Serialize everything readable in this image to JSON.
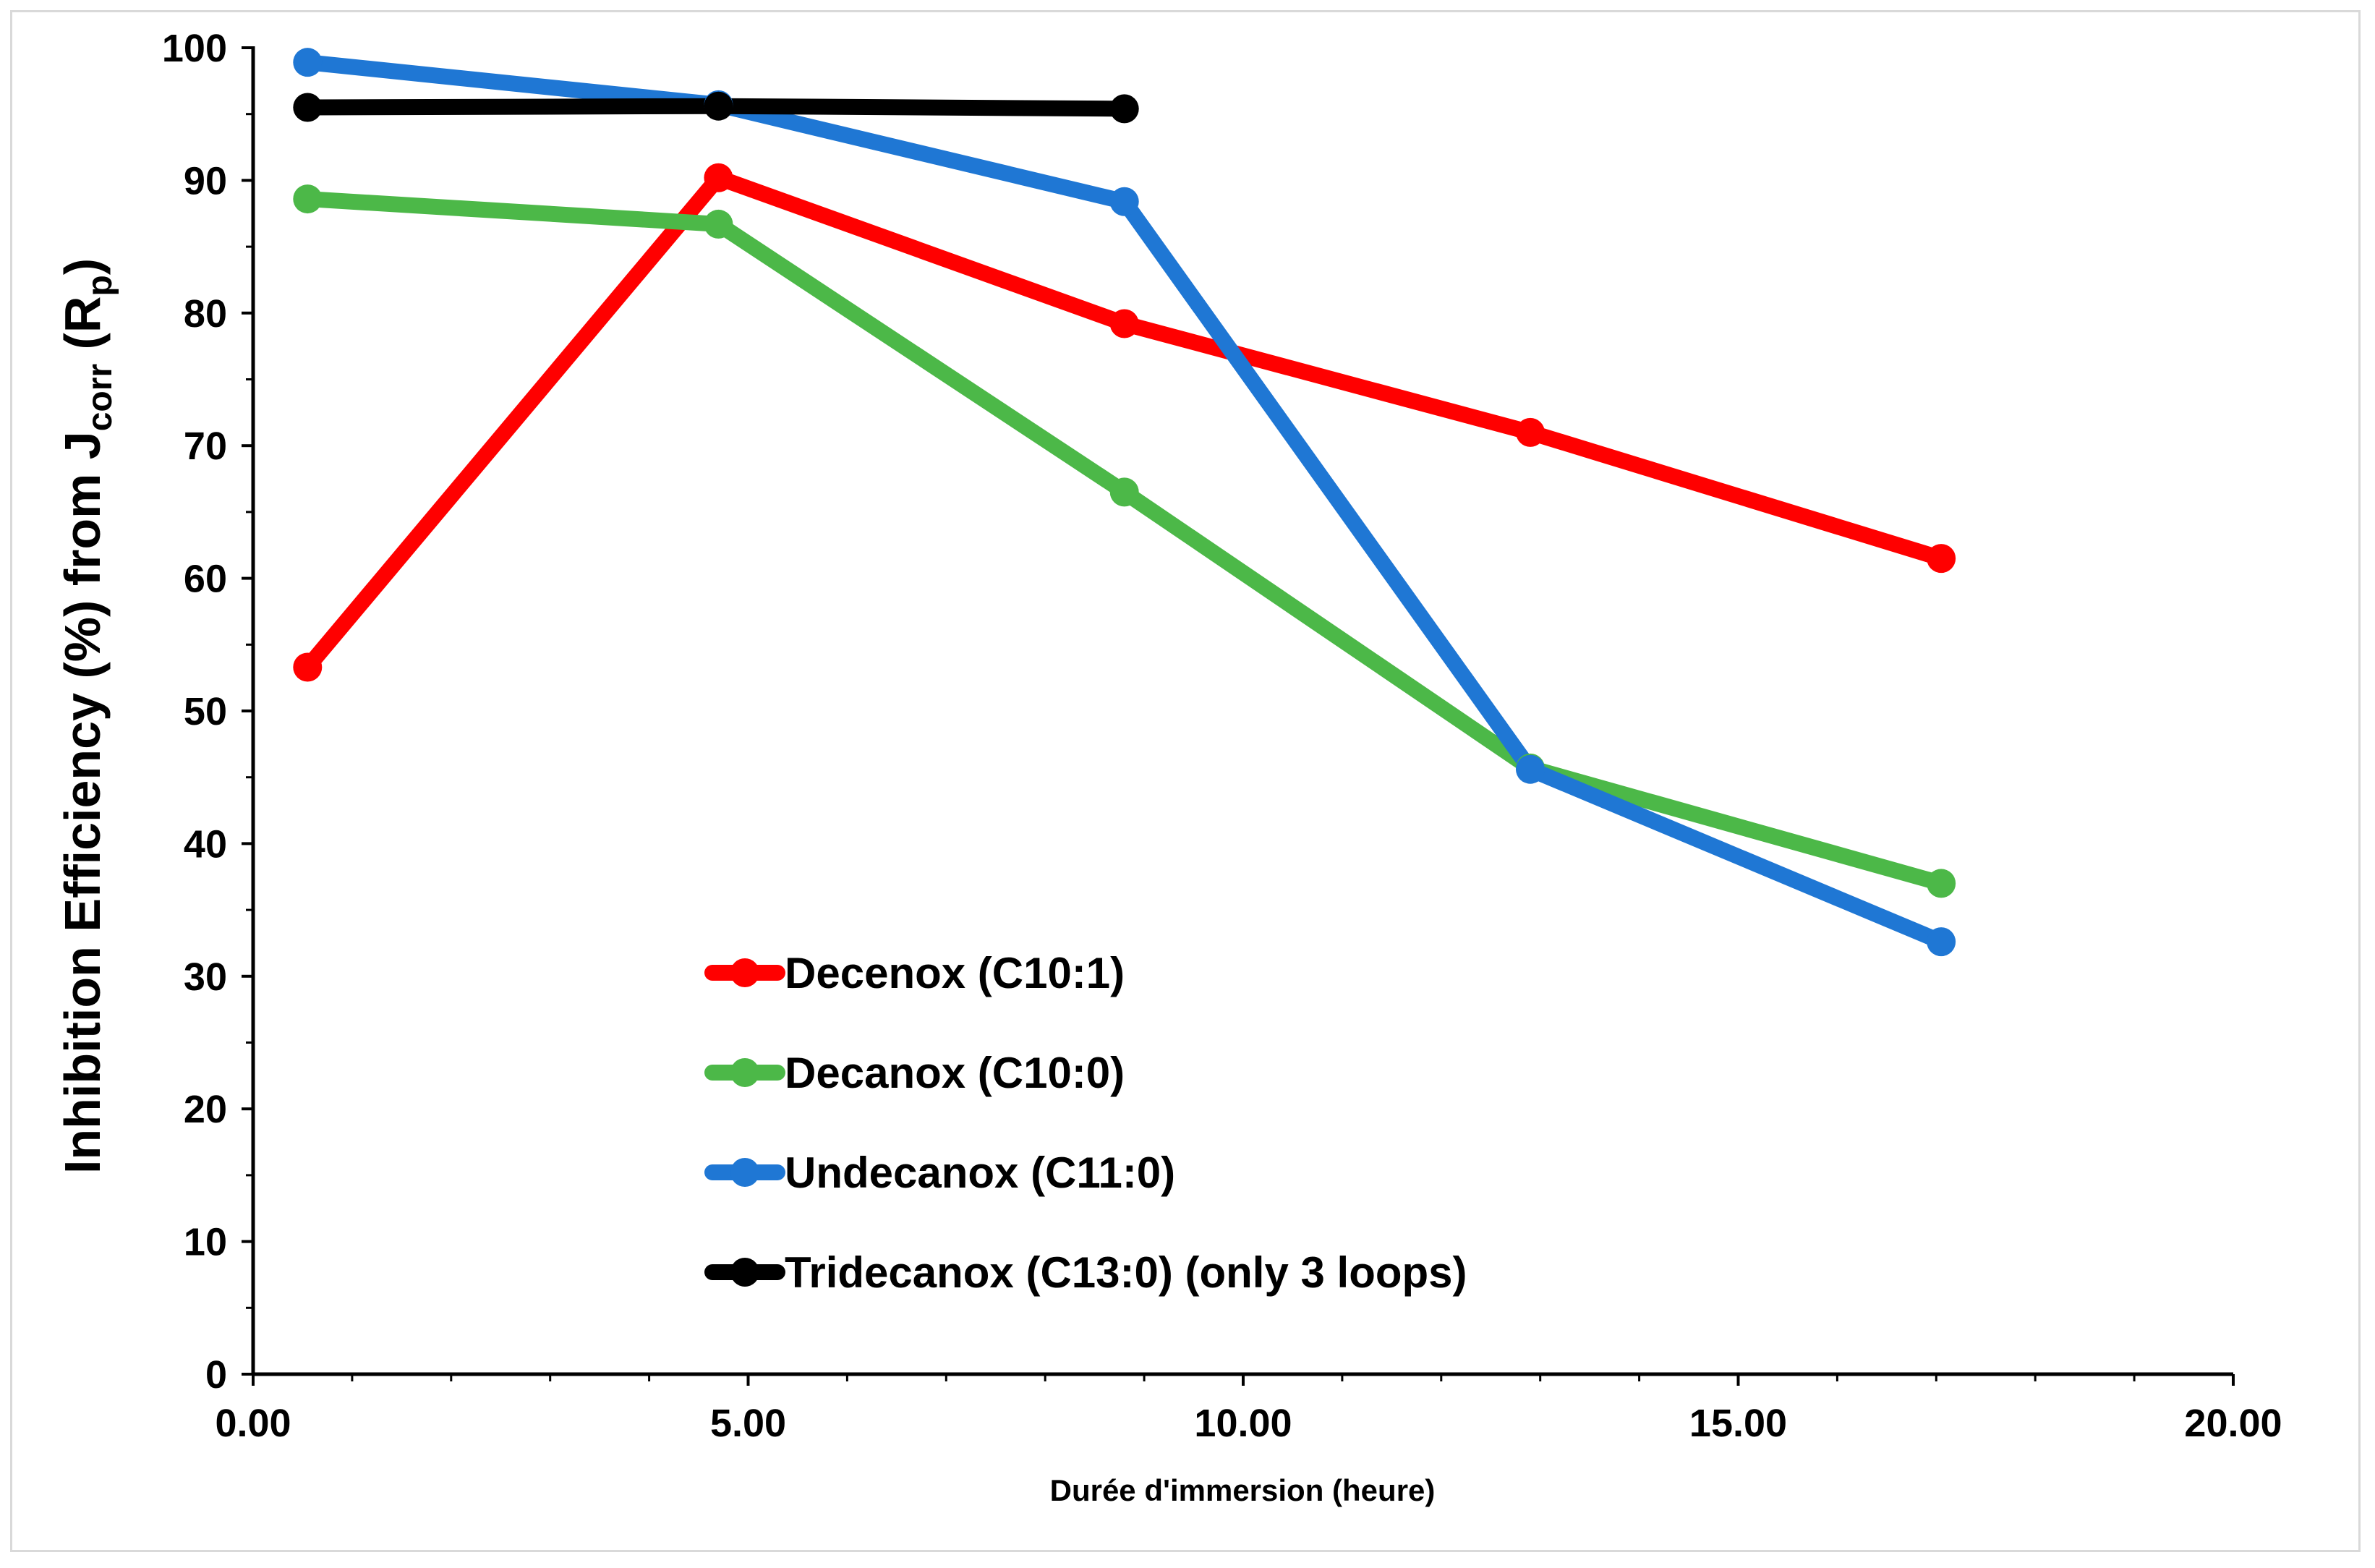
{
  "chart_data": {
    "type": "line",
    "title": "",
    "xlabel": "Durée d'immersion (heure)",
    "ylabel": {
      "main": "Inhibition Efficiency (%) from J",
      "sub1": "corr",
      "mid": " (R",
      "sub2": "p",
      "end": ")"
    },
    "xlim": [
      0,
      20
    ],
    "ylim": [
      0,
      100
    ],
    "xticks": [
      "0.00",
      "5.00",
      "10.00",
      "15.00",
      "20.00"
    ],
    "yticks": [
      "0",
      "10",
      "20",
      "30",
      "40",
      "50",
      "60",
      "70",
      "80",
      "90",
      "100"
    ],
    "grid": false,
    "legend_position": "lower-center",
    "series": [
      {
        "name": "Decenox (C10:1)",
        "color": "#ff0000",
        "x": [
          0.55,
          4.7,
          8.8,
          12.9,
          17.05
        ],
        "y": [
          53.3,
          90.2,
          79.2,
          71.0,
          61.5
        ]
      },
      {
        "name": "Decanox (C10:0)",
        "color": "#4cb848",
        "x": [
          0.55,
          4.7,
          8.8,
          12.9,
          17.05
        ],
        "y": [
          88.6,
          86.7,
          66.5,
          45.7,
          37.0
        ]
      },
      {
        "name": "Undecanox (C11:0)",
        "color": "#1f77d4",
        "x": [
          0.55,
          4.7,
          8.8,
          12.9,
          17.05
        ],
        "y": [
          98.9,
          95.7,
          88.4,
          45.6,
          32.6
        ]
      },
      {
        "name": "Tridecanox (C13:0) (only 3 loops)",
        "color": "#000000",
        "x": [
          0.55,
          4.7,
          8.8
        ],
        "y": [
          95.5,
          95.6,
          95.4
        ]
      }
    ]
  }
}
